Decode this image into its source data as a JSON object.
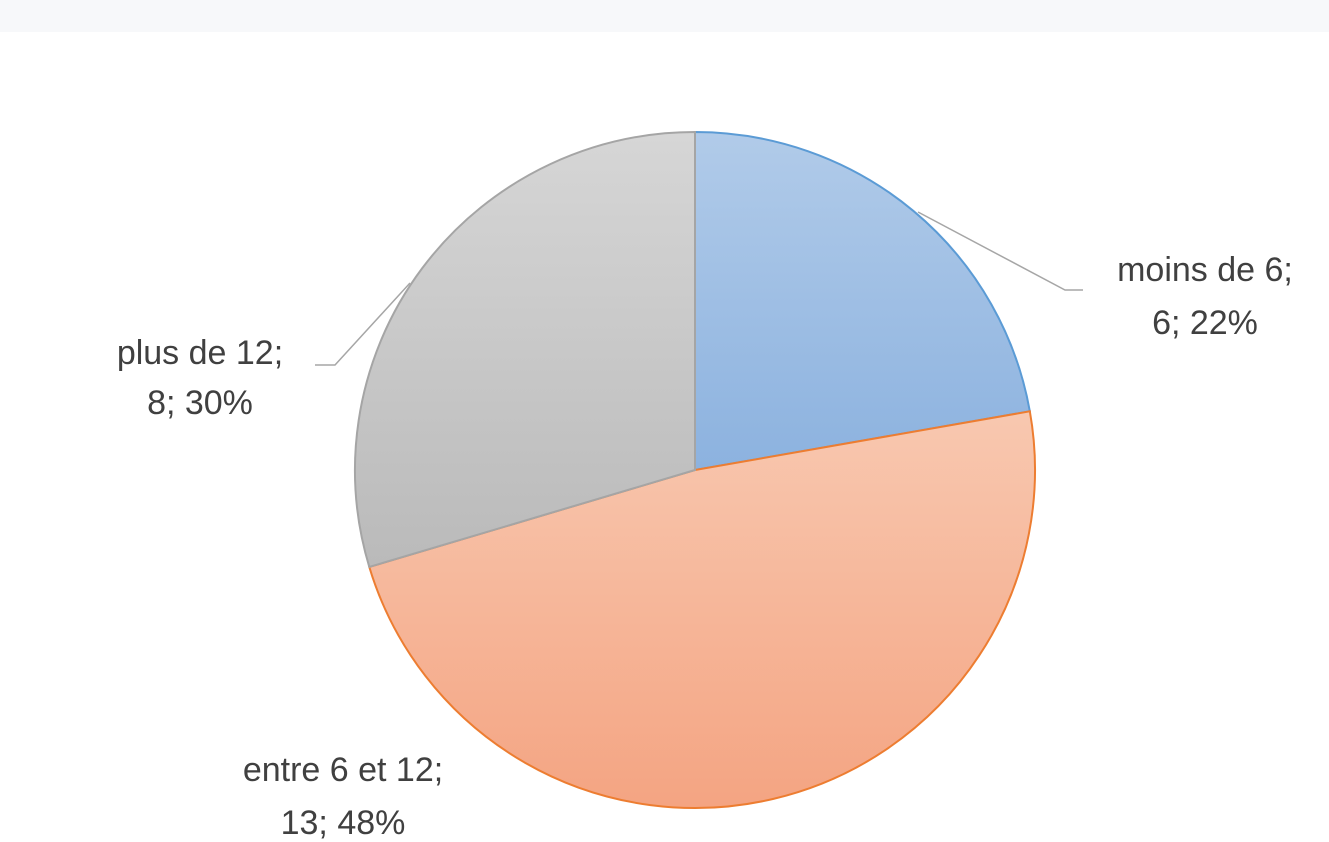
{
  "chart_data": {
    "type": "pie",
    "categories": [
      "moins de 6;",
      "entre 6 et 12;",
      "plus de 12;"
    ],
    "values": [
      6,
      13,
      8
    ],
    "value_labels": [
      "6; 22%",
      "13; 48%",
      "8; 30%"
    ],
    "colors": [
      "#9dbde4",
      "#f5b597",
      "#c9c9c9"
    ],
    "legend": false
  }
}
